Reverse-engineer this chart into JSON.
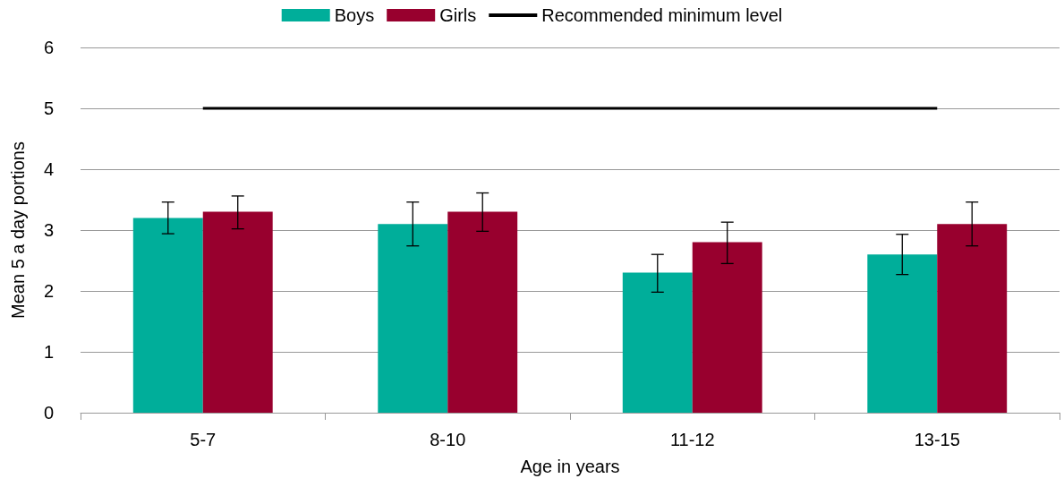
{
  "chart_data": {
    "type": "bar",
    "xlabel": "Age in years",
    "ylabel": "Mean 5 a day portions",
    "categories": [
      "5-7",
      "8-10",
      "11-12",
      "13-15"
    ],
    "series": [
      {
        "name": "Boys",
        "color": "#00ae9a",
        "values": [
          3.2,
          3.1,
          2.3,
          2.6
        ],
        "errors": [
          [
            2.94,
            3.46
          ],
          [
            2.74,
            3.46
          ],
          [
            1.98,
            2.6
          ],
          [
            2.27,
            2.93
          ]
        ]
      },
      {
        "name": "Girls",
        "color": "#98002e",
        "values": [
          3.3,
          3.3,
          2.8,
          3.1
        ],
        "errors": [
          [
            3.02,
            3.56
          ],
          [
            2.98,
            3.61
          ],
          [
            2.45,
            3.13
          ],
          [
            2.74,
            3.46
          ]
        ]
      }
    ],
    "ref_lines": [
      {
        "axis": "y",
        "value": 5,
        "label": "Recommended minimum level",
        "color": "#000000",
        "line_style": "solid"
      }
    ],
    "ylim": [
      0,
      6
    ],
    "yticks": [
      0,
      1,
      2,
      3,
      4,
      5,
      6
    ],
    "grid": "y",
    "legend": "top"
  }
}
